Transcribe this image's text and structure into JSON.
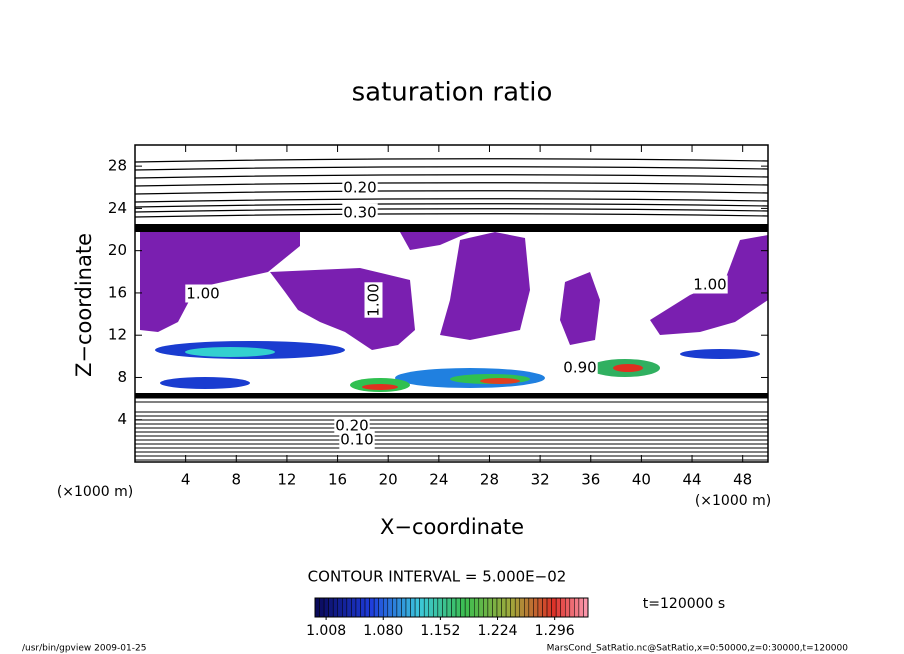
{
  "chart_data": {
    "type": "contour",
    "title": "saturation ratio",
    "x_label": "X−coordinate",
    "y_label": "Z−coordinate",
    "x_unit": "(×1000 m)",
    "y_unit": "(×1000 m)",
    "xlim": [
      0,
      50
    ],
    "ylim": [
      0,
      30
    ],
    "xticks": [
      4,
      8,
      12,
      16,
      20,
      24,
      28,
      32,
      36,
      40,
      44,
      48
    ],
    "yticks": [
      4,
      8,
      12,
      16,
      20,
      24,
      28
    ],
    "contour_labels": [
      "0.20",
      "0.30",
      "1.00",
      "1.00",
      "1.00",
      "0.90",
      "0.20",
      "0.10"
    ],
    "contour_interval": "CONTOUR INTERVAL = 5.000E−02",
    "colorbar": {
      "lim": [
        0.994,
        1.338
      ],
      "ticks": [
        {
          "value": 1.008,
          "label": "1.008"
        },
        {
          "value": 1.08,
          "label": "1.080"
        },
        {
          "value": 1.152,
          "label": "1.152"
        },
        {
          "value": 1.224,
          "label": "1.224"
        },
        {
          "value": 1.296,
          "label": "1.296"
        }
      ]
    },
    "time_label": "t=120000 s",
    "footer_left": "/usr/bin/gpview   2009-01-25",
    "footer_right": "MarsCond_SatRatio.nc@SatRatio,x=0:50000,z=0:30000,t=120000"
  }
}
